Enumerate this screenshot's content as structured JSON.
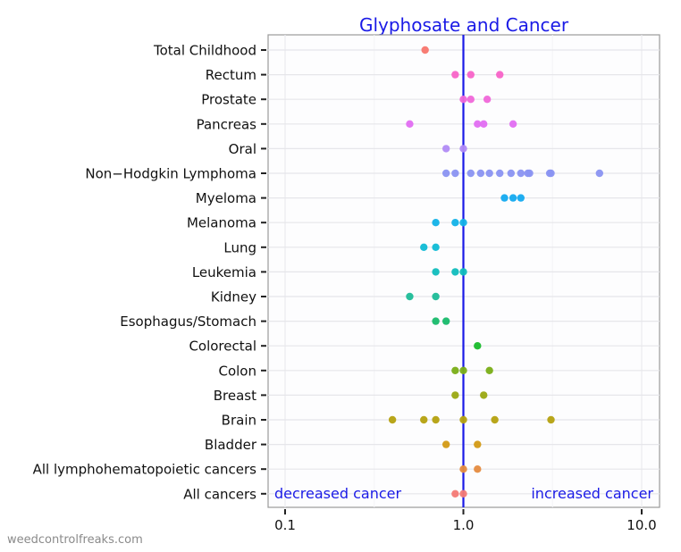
{
  "chart_data": {
    "type": "scatter",
    "title": "Glyphosate and Cancer",
    "xlabel": "",
    "ylabel": "",
    "xscale": "log10",
    "xlim": [
      0.09,
      12
    ],
    "x_ticks": [
      0.1,
      1.0,
      10.0
    ],
    "x_tick_labels": [
      "0.1",
      "1.0",
      "10.0"
    ],
    "reference_line": {
      "x": 1.0,
      "color": "#1a1ae6"
    },
    "grid": true,
    "legend": "none",
    "annotations": [
      {
        "text": "decreased cancer",
        "position": "bottom-left",
        "color": "#1a1ae6"
      },
      {
        "text": "increased cancer",
        "position": "bottom-right",
        "color": "#1a1ae6"
      }
    ],
    "categories": [
      "Total Childhood",
      "Rectum ",
      "Prostate",
      "Pancreas",
      "Oral",
      "Non−Hodgkin Lymphoma",
      "Myeloma",
      "Melanoma",
      "Lung",
      "Leukemia",
      "Kidney",
      "Esophagus/Stomach",
      "Colorectal",
      "Colon",
      "Breast",
      "Brain",
      "Bladder ",
      "All lymphohematopoietic cancers",
      "All cancers"
    ],
    "series": [
      {
        "name": "Total Childhood",
        "color": "#f8766d",
        "values": [
          0.61
        ]
      },
      {
        "name": "Rectum",
        "color": "#f863c8",
        "values": [
          0.9,
          1.1,
          1.6
        ]
      },
      {
        "name": "Prostate",
        "color": "#f067d9",
        "values": [
          1.0,
          1.1,
          1.36
        ]
      },
      {
        "name": "Pancreas",
        "color": "#e26ef2",
        "values": [
          0.5,
          1.2,
          1.3,
          1.9
        ]
      },
      {
        "name": "Oral",
        "color": "#b18bf5",
        "values": [
          0.8,
          1.0
        ]
      },
      {
        "name": "Non-Hodgkin Lymphoma",
        "color": "#8a93f2",
        "values": [
          0.8,
          0.9,
          1.1,
          1.25,
          1.4,
          1.6,
          1.85,
          2.1,
          2.3,
          2.35,
          3.05,
          3.1,
          5.8
        ]
      },
      {
        "name": "Myeloma",
        "color": "#13aaf0",
        "values": [
          1.7,
          1.9,
          2.1
        ]
      },
      {
        "name": "Melanoma",
        "color": "#12b2e8",
        "values": [
          0.7,
          0.9,
          1.0
        ]
      },
      {
        "name": "Lung",
        "color": "#0fbad5",
        "values": [
          0.6,
          0.7
        ]
      },
      {
        "name": "Leukemia",
        "color": "#10bdbd",
        "values": [
          0.7,
          0.9,
          1.0
        ]
      },
      {
        "name": "Kidney",
        "color": "#1ebc98",
        "values": [
          0.5,
          0.7
        ]
      },
      {
        "name": "Esophagus/Stomach",
        "color": "#18bb6c",
        "values": [
          0.7,
          0.8
        ]
      },
      {
        "name": "Colorectal",
        "color": "#19bb2b",
        "values": [
          1.2
        ]
      },
      {
        "name": "Colon",
        "color": "#7aae17",
        "values": [
          0.9,
          1.0,
          1.4
        ]
      },
      {
        "name": "Breast",
        "color": "#9aa812",
        "values": [
          0.9,
          1.3
        ]
      },
      {
        "name": "Brain",
        "color": "#b5a10f",
        "values": [
          0.4,
          0.6,
          0.7,
          1.0,
          1.5,
          3.1
        ]
      },
      {
        "name": "Bladder",
        "color": "#d39a15",
        "values": [
          0.8,
          1.2
        ]
      },
      {
        "name": "All lymphohematopoietic cancers",
        "color": "#e58b3f",
        "values": [
          1.0,
          1.2
        ]
      },
      {
        "name": "All cancers",
        "color": "#f47a75",
        "values": [
          0.9,
          1.0
        ]
      }
    ]
  },
  "watermark": "weedcontrolfreaks.com"
}
